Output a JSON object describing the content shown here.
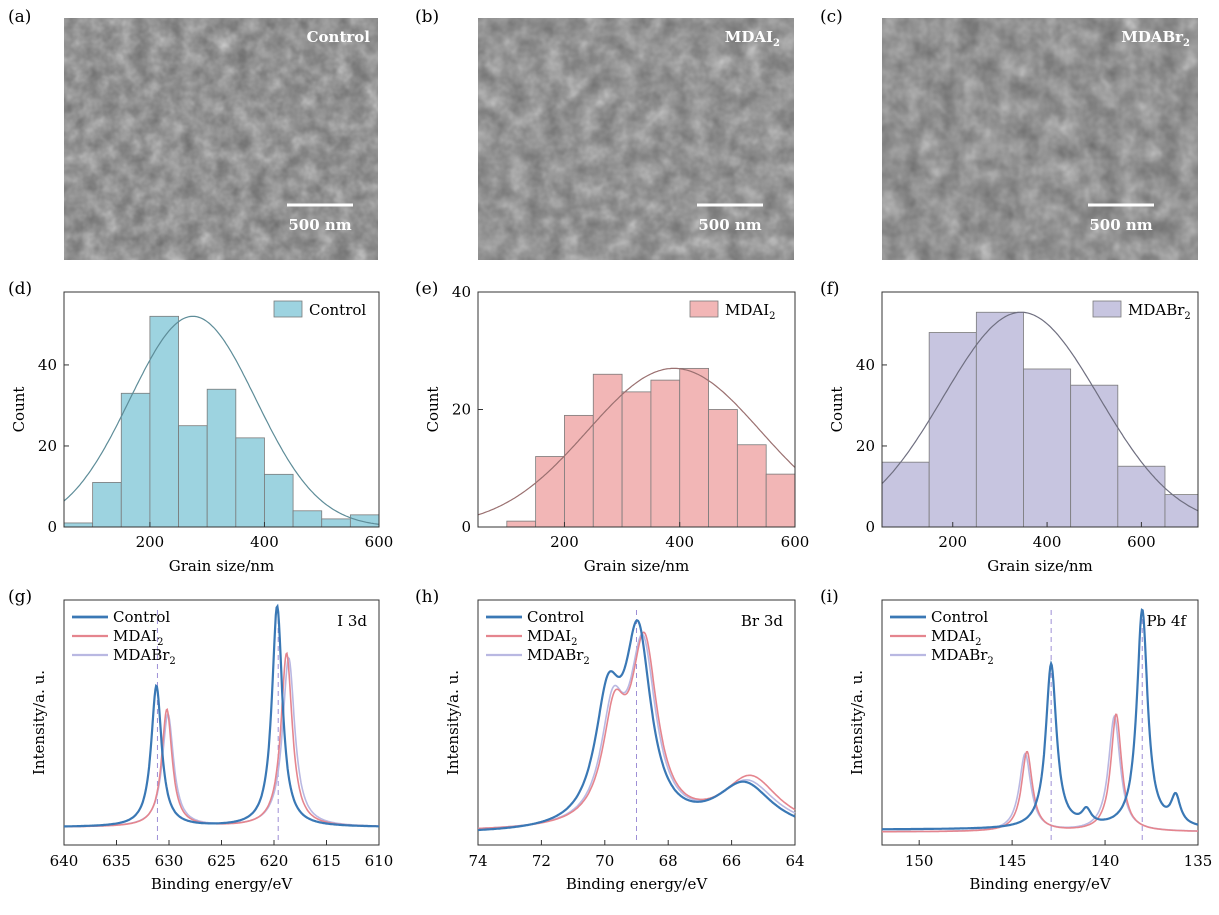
{
  "panels": {
    "a": {
      "letter": "(a)",
      "label": "Control",
      "scale": "500 nm"
    },
    "b": {
      "letter": "(b)",
      "label": "MDAI",
      "label_sub": "2",
      "scale": "500 nm"
    },
    "c": {
      "letter": "(c)",
      "label": "MDABr",
      "label_sub": "2",
      "scale": "500 nm"
    }
  },
  "colors": {
    "hist_control": "#9dd3e0",
    "hist_mdai2": "#f2b6b6",
    "hist_mdabr2": "#c7c5e0",
    "fit_control": "#5d8c98",
    "fit_mdai2": "#9a7070",
    "fit_mdabr2": "#6f6f80",
    "xps_control": "#3a78b5",
    "xps_mdai2": "#e5858e",
    "xps_mdabr2": "#b9b8e2",
    "dash_line": "#9e8fd6"
  },
  "chart_data": [
    {
      "id": "d",
      "letter": "(d)",
      "type": "bar",
      "xlabel": "Grain size/nm",
      "ylabel": "Count",
      "xlim": [
        50,
        600
      ],
      "ylim": [
        0,
        58
      ],
      "xticks": [
        200,
        400,
        600
      ],
      "yticks": [
        0,
        20,
        40
      ],
      "legend": {
        "name": "Control",
        "sub": "",
        "position": "top-right"
      },
      "bin_width": 50,
      "bins": [
        50,
        100,
        150,
        200,
        250,
        300,
        350,
        400,
        450,
        500,
        550
      ],
      "counts": [
        1,
        11,
        33,
        52,
        25,
        34,
        22,
        13,
        4,
        2,
        3
      ],
      "fit": {
        "mean": 275,
        "sd": 110,
        "peak": 52
      }
    },
    {
      "id": "e",
      "letter": "(e)",
      "type": "bar",
      "xlabel": "Grain size/nm",
      "ylabel": "Count",
      "xlim": [
        50,
        600
      ],
      "ylim": [
        0,
        40
      ],
      "xticks": [
        200,
        400,
        600
      ],
      "yticks": [
        0,
        20,
        40
      ],
      "legend": {
        "name": "MDAI",
        "sub": "2",
        "position": "top-right"
      },
      "bin_width": 50,
      "bins": [
        100,
        150,
        200,
        250,
        300,
        350,
        400,
        450,
        500,
        550
      ],
      "counts": [
        1,
        12,
        19,
        26,
        23,
        25,
        27,
        20,
        14,
        9
      ],
      "fit": {
        "mean": 390,
        "sd": 150,
        "peak": 27
      }
    },
    {
      "id": "f",
      "letter": "(f)",
      "type": "bar",
      "xlabel": "Grain size/nm",
      "ylabel": "Count",
      "xlim": [
        50,
        720
      ],
      "ylim": [
        0,
        58
      ],
      "xticks": [
        200,
        400,
        600
      ],
      "yticks": [
        0,
        20,
        40
      ],
      "legend": {
        "name": "MDABr",
        "sub": "2",
        "position": "top-right"
      },
      "bin_width": 100,
      "bins": [
        50,
        150,
        250,
        350,
        450,
        550,
        650
      ],
      "counts": [
        16,
        48,
        53,
        39,
        35,
        15,
        8
      ],
      "fit": {
        "mean": 345,
        "sd": 165,
        "peak": 53
      }
    },
    {
      "id": "g",
      "letter": "(g)",
      "type": "line",
      "xlabel": "Binding energy/eV",
      "ylabel": "Intensity/a. u.",
      "xlim": [
        640,
        610
      ],
      "xticks": [
        640,
        635,
        630,
        625,
        620,
        615,
        610
      ],
      "annotation": "I 3d",
      "dashes": [
        631.1,
        619.6
      ],
      "series": [
        {
          "name": "Control",
          "sub": "",
          "color": "#3a78b5",
          "width": 2.2,
          "baseline": 0.05,
          "peaks": [
            [
              631.2,
              0.6,
              0.6
            ],
            [
              619.7,
              0.94,
              0.6
            ]
          ]
        },
        {
          "name": "MDAI",
          "sub": "2",
          "color": "#e5858e",
          "width": 1.6,
          "baseline": 0.05,
          "peaks": [
            [
              630.2,
              0.5,
              0.6
            ],
            [
              618.8,
              0.74,
              0.65
            ]
          ]
        },
        {
          "name": "MDABr",
          "sub": "2",
          "color": "#b9b8e2",
          "width": 1.6,
          "baseline": 0.05,
          "peaks": [
            [
              630.1,
              0.48,
              0.65
            ],
            [
              618.6,
              0.72,
              0.7
            ]
          ]
        }
      ]
    },
    {
      "id": "h",
      "letter": "(h)",
      "type": "line",
      "xlabel": "Binding energy/eV",
      "ylabel": "Intensity/a. u.",
      "xlim": [
        74,
        64
      ],
      "xticks": [
        74,
        72,
        70,
        68,
        66,
        64
      ],
      "annotation": "Br 3d",
      "dashes": [
        69.0
      ],
      "series": [
        {
          "name": "Control",
          "sub": "",
          "color": "#3a78b5",
          "width": 2.2,
          "baseline": 0.02,
          "peaks": [
            [
              69.9,
              0.5,
              0.5
            ],
            [
              68.95,
              0.78,
              0.5
            ],
            [
              65.6,
              0.2,
              1.1
            ]
          ]
        },
        {
          "name": "MDAI",
          "sub": "2",
          "color": "#e5858e",
          "width": 1.6,
          "baseline": 0.03,
          "peaks": [
            [
              69.7,
              0.42,
              0.45
            ],
            [
              68.75,
              0.75,
              0.5
            ],
            [
              65.4,
              0.22,
              1.1
            ]
          ]
        },
        {
          "name": "MDABr",
          "sub": "2",
          "color": "#b9b8e2",
          "width": 1.6,
          "baseline": 0.03,
          "peaks": [
            [
              69.75,
              0.44,
              0.45
            ],
            [
              68.8,
              0.74,
              0.5
            ],
            [
              65.5,
              0.2,
              1.1
            ]
          ]
        }
      ]
    },
    {
      "id": "i",
      "letter": "(i)",
      "type": "line",
      "xlabel": "Binding energy/eV",
      "ylabel": "Intensity/a. u.",
      "xlim": [
        152,
        135
      ],
      "xticks": [
        150,
        145,
        140,
        135
      ],
      "annotation": "Pb 4f",
      "dashes": [
        142.9,
        138.0
      ],
      "series": [
        {
          "name": "Control",
          "sub": "",
          "color": "#3a78b5",
          "width": 2.2,
          "baseline": 0.04,
          "peaks": [
            [
              142.9,
              0.7,
              0.35
            ],
            [
              138.0,
              0.93,
              0.35
            ],
            [
              141.0,
              0.06,
              0.3
            ],
            [
              136.2,
              0.12,
              0.3
            ]
          ]
        },
        {
          "name": "MDAI",
          "sub": "2",
          "color": "#e5858e",
          "width": 1.6,
          "baseline": 0.03,
          "peaks": [
            [
              144.2,
              0.34,
              0.35
            ],
            [
              139.4,
              0.5,
              0.35
            ]
          ]
        },
        {
          "name": "MDABr",
          "sub": "2",
          "color": "#b9b8e2",
          "width": 1.6,
          "baseline": 0.03,
          "peaks": [
            [
              144.3,
              0.33,
              0.38
            ],
            [
              139.5,
              0.49,
              0.38
            ]
          ]
        }
      ]
    }
  ]
}
